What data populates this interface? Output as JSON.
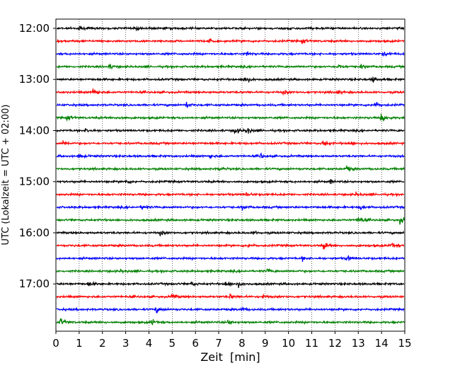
{
  "chart_data": {
    "type": "line",
    "subtype": "helicorder (seismogram drum plot)",
    "xlabel": "Zeit  [min]",
    "ylabel": "UTC (Lokalzeit = UTC + 02:00)",
    "xlim": [
      0,
      15
    ],
    "x_ticks": [
      "0",
      "1",
      "2",
      "3",
      "4",
      "5",
      "6",
      "7",
      "8",
      "9",
      "10",
      "11",
      "12",
      "13",
      "14",
      "15"
    ],
    "x_grid": "dotted vertical at each minute",
    "y_ticks": [
      "12:00",
      "13:00",
      "14:00",
      "15:00",
      "16:00",
      "17:00"
    ],
    "trace_interval_min": 15,
    "trace_start_times_utc": [
      "12:00",
      "12:15",
      "12:30",
      "12:45",
      "13:00",
      "13:15",
      "13:30",
      "13:45",
      "14:00",
      "14:15",
      "14:30",
      "14:45",
      "15:00",
      "15:15",
      "15:30",
      "15:45",
      "16:00",
      "16:15",
      "16:30",
      "16:45",
      "17:00",
      "17:15",
      "17:30",
      "17:45"
    ],
    "trace_colors": [
      "#000000",
      "#ff0000",
      "#0000ff",
      "#008000"
    ],
    "events": [
      {
        "trace": 0,
        "x": 1.0,
        "amp": 0.7
      },
      {
        "trace": 0,
        "x": 3.5,
        "amp": 0.6
      },
      {
        "trace": 0,
        "x": 10.0,
        "amp": 0.5
      },
      {
        "trace": 1,
        "x": 6.6,
        "amp": 0.6
      },
      {
        "trace": 1,
        "x": 10.6,
        "amp": 0.6
      },
      {
        "trace": 2,
        "x": 8.2,
        "amp": 0.5
      },
      {
        "trace": 2,
        "x": 14.1,
        "amp": 0.6
      },
      {
        "trace": 3,
        "x": 2.3,
        "amp": 0.7
      },
      {
        "trace": 3,
        "x": 12.1,
        "amp": 0.9
      },
      {
        "trace": 3,
        "x": 13.1,
        "amp": 0.6
      },
      {
        "trace": 4,
        "x": 8.1,
        "amp": 1.5
      },
      {
        "trace": 4,
        "x": 13.6,
        "amp": 0.9
      },
      {
        "trace": 5,
        "x": 1.6,
        "amp": 1.2
      },
      {
        "trace": 5,
        "x": 9.8,
        "amp": 0.6
      },
      {
        "trace": 5,
        "x": 12.1,
        "amp": 0.5
      },
      {
        "trace": 6,
        "x": 5.6,
        "amp": 0.9
      },
      {
        "trace": 6,
        "x": 13.7,
        "amp": 1.0
      },
      {
        "trace": 7,
        "x": 0.5,
        "amp": 0.7
      },
      {
        "trace": 7,
        "x": 2.7,
        "amp": 0.5
      },
      {
        "trace": 7,
        "x": 14.0,
        "amp": 1.5
      },
      {
        "trace": 8,
        "x": 1.3,
        "amp": 0.7
      },
      {
        "trace": 8,
        "x": 7.7,
        "amp": 1.0
      },
      {
        "trace": 8,
        "x": 8.2,
        "amp": 0.9
      },
      {
        "trace": 9,
        "x": 0.3,
        "amp": 0.6
      },
      {
        "trace": 9,
        "x": 11.5,
        "amp": 1.3
      },
      {
        "trace": 9,
        "x": 12.6,
        "amp": 0.6
      },
      {
        "trace": 10,
        "x": 1.0,
        "amp": 0.6
      },
      {
        "trace": 10,
        "x": 6.6,
        "amp": 0.6
      },
      {
        "trace": 10,
        "x": 8.8,
        "amp": 0.7
      },
      {
        "trace": 11,
        "x": 7.0,
        "amp": 0.6
      },
      {
        "trace": 11,
        "x": 12.5,
        "amp": 0.9
      },
      {
        "trace": 12,
        "x": 3.0,
        "amp": 0.5
      },
      {
        "trace": 12,
        "x": 11.8,
        "amp": 0.4
      },
      {
        "trace": 13,
        "x": 8.2,
        "amp": 0.5
      },
      {
        "trace": 13,
        "x": 12.9,
        "amp": 0.5
      },
      {
        "trace": 14,
        "x": 3.7,
        "amp": 0.7
      },
      {
        "trace": 14,
        "x": 8.0,
        "amp": 0.6
      },
      {
        "trace": 14,
        "x": 13.1,
        "amp": 0.6
      },
      {
        "trace": 15,
        "x": 13.0,
        "amp": 1.0
      },
      {
        "trace": 15,
        "x": 14.8,
        "amp": 1.0
      },
      {
        "trace": 16,
        "x": 4.5,
        "amp": 0.7
      },
      {
        "trace": 16,
        "x": 8.5,
        "amp": 0.5
      },
      {
        "trace": 17,
        "x": 8.3,
        "amp": 0.6
      },
      {
        "trace": 17,
        "x": 11.5,
        "amp": 1.0
      },
      {
        "trace": 17,
        "x": 14.4,
        "amp": 0.8
      },
      {
        "trace": 18,
        "x": 10.6,
        "amp": 0.5
      },
      {
        "trace": 18,
        "x": 12.5,
        "amp": 0.8
      },
      {
        "trace": 19,
        "x": 2.8,
        "amp": 0.5
      },
      {
        "trace": 19,
        "x": 9.1,
        "amp": 0.5
      },
      {
        "trace": 20,
        "x": 1.4,
        "amp": 0.8
      },
      {
        "trace": 20,
        "x": 5.8,
        "amp": 0.5
      },
      {
        "trace": 20,
        "x": 7.3,
        "amp": 1.2
      },
      {
        "trace": 20,
        "x": 7.8,
        "amp": 0.8
      },
      {
        "trace": 21,
        "x": 5.0,
        "amp": 0.8
      },
      {
        "trace": 21,
        "x": 7.5,
        "amp": 0.6
      },
      {
        "trace": 21,
        "x": 8.9,
        "amp": 0.5
      },
      {
        "trace": 22,
        "x": 4.3,
        "amp": 0.8
      },
      {
        "trace": 22,
        "x": 8.0,
        "amp": 0.4
      },
      {
        "trace": 23,
        "x": 0.2,
        "amp": 1.1
      },
      {
        "trace": 23,
        "x": 4.1,
        "amp": 0.8
      },
      {
        "trace": 23,
        "x": 7.4,
        "amp": 0.6
      }
    ]
  }
}
